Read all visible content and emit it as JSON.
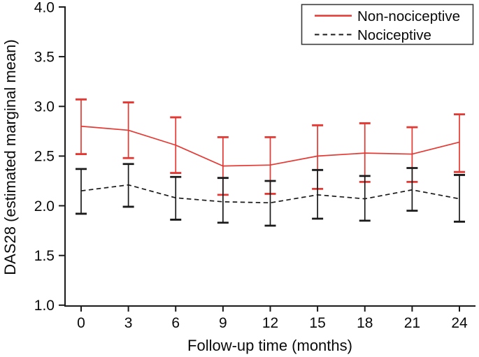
{
  "figure": {
    "background": "#ffffff"
  },
  "colors": {
    "series_red": "#e63832",
    "series_black": "#1a1a1a",
    "axis": "#1a1a1a",
    "legend_border": "#3a3a3a"
  },
  "chart_data": {
    "type": "line",
    "title": "",
    "xlabel": "Follow-up time (months)",
    "ylabel": "DAS28 (estimated marginal mean)",
    "x": [
      0,
      3,
      6,
      9,
      12,
      15,
      18,
      21,
      24
    ],
    "xtick_labels": [
      "0",
      "3",
      "6",
      "9",
      "12",
      "15",
      "18",
      "21",
      "24"
    ],
    "ytick_labels": [
      "4.0",
      "3.5",
      "3.0",
      "2.5",
      "2.0",
      "1.5",
      "1.0"
    ],
    "ytick_values": [
      4.0,
      3.5,
      3.0,
      2.5,
      2.0,
      1.5,
      1.0
    ],
    "ylim": [
      1.0,
      4.0
    ],
    "grid": false,
    "error_bars": true,
    "legend_position": "top-right",
    "series": [
      {
        "name": "Non-nociceptive",
        "color": "#e63832",
        "line_style": "solid",
        "values": [
          2.8,
          2.76,
          2.61,
          2.4,
          2.41,
          2.5,
          2.53,
          2.52,
          2.64
        ],
        "ci_low": [
          2.52,
          2.48,
          2.33,
          2.11,
          2.12,
          2.17,
          2.24,
          2.24,
          2.34
        ],
        "ci_high": [
          3.07,
          3.04,
          2.89,
          2.69,
          2.69,
          2.81,
          2.83,
          2.79,
          2.92
        ]
      },
      {
        "name": "Nociceptive",
        "color": "#1a1a1a",
        "line_style": "dashed",
        "values": [
          2.15,
          2.21,
          2.08,
          2.04,
          2.03,
          2.11,
          2.07,
          2.16,
          2.07
        ],
        "ci_low": [
          1.92,
          1.99,
          1.86,
          1.83,
          1.8,
          1.87,
          1.85,
          1.95,
          1.84
        ],
        "ci_high": [
          2.37,
          2.42,
          2.29,
          2.28,
          2.25,
          2.36,
          2.3,
          2.38,
          2.31
        ]
      }
    ]
  }
}
